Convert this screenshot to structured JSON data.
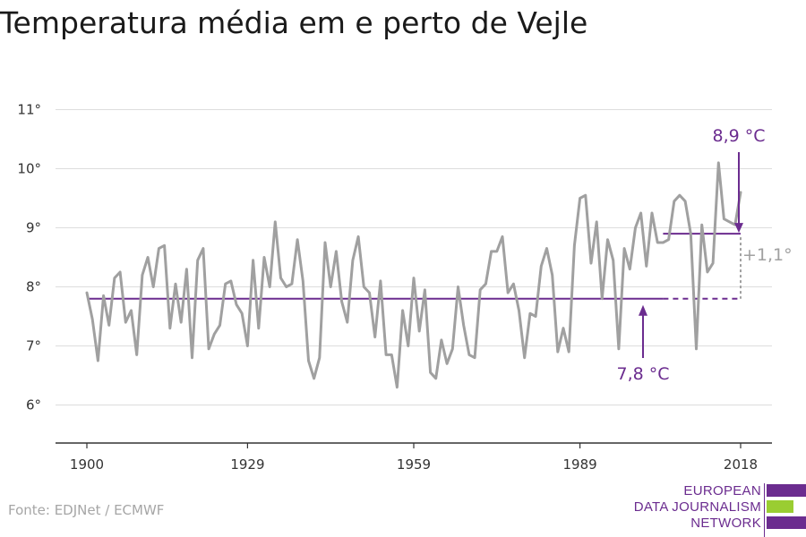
{
  "title": "Temperatura média em e perto de Vejle",
  "source": "Fonte: EDJNet / ECMWF",
  "logo": {
    "line1": "EUROPEAN",
    "line2": "DATA JOURNALISM",
    "line3": "NETWORK",
    "colors": {
      "purple": "#6b2c8f",
      "green": "#9acd32"
    }
  },
  "colors": {
    "series": "#a0a0a0",
    "accent": "#6b2c8f",
    "grid": "#dddddd",
    "axis": "#333333",
    "diff_label": "#a0a0a0"
  },
  "chart_data": {
    "type": "line",
    "title": "Temperatura média em e perto de Vejle",
    "xlabel": "",
    "ylabel": "",
    "xlim": [
      1900,
      2018
    ],
    "ylim": [
      5.3,
      11
    ],
    "x_ticks": [
      1900,
      1929,
      1959,
      1989,
      2018
    ],
    "x_tick_labels": [
      "1900",
      "1929",
      "1959",
      "1989",
      "2018"
    ],
    "y_ticks": [
      6,
      7,
      8,
      9,
      10,
      11
    ],
    "y_tick_labels": [
      "6°",
      "7°",
      "8°",
      "9°",
      "10°",
      "11°"
    ],
    "grid": true,
    "series": [
      {
        "x": [
          1900,
          1901,
          1902,
          1903,
          1904,
          1905,
          1906,
          1907,
          1908,
          1909,
          1910,
          1911,
          1912,
          1913,
          1914,
          1915,
          1916,
          1917,
          1918,
          1919,
          1920,
          1921,
          1922,
          1923,
          1924,
          1925,
          1926,
          1927,
          1928,
          1929,
          1930,
          1931,
          1932,
          1933,
          1934,
          1935,
          1936,
          1937,
          1938,
          1939,
          1940,
          1941,
          1942,
          1943,
          1944,
          1945,
          1946,
          1947,
          1948,
          1949,
          1950,
          1951,
          1952,
          1953,
          1954,
          1955,
          1956,
          1957,
          1958,
          1959,
          1960,
          1961,
          1962,
          1963,
          1964,
          1965,
          1966,
          1967,
          1968,
          1969,
          1970,
          1971,
          1972,
          1973,
          1974,
          1975,
          1976,
          1977,
          1978,
          1979,
          1980,
          1981,
          1982,
          1983,
          1984,
          1985,
          1986,
          1987,
          1988,
          1989,
          1990,
          1991,
          1992,
          1993,
          1994,
          1995,
          1996,
          1997,
          1998,
          1999,
          2000,
          2001,
          2002,
          2003,
          2004,
          2005,
          2006,
          2007,
          2008,
          2009,
          2010,
          2011,
          2012,
          2013,
          2014,
          2015,
          2016,
          2017,
          2018
        ],
        "values": [
          7.9,
          7.45,
          6.75,
          7.85,
          7.35,
          8.15,
          8.25,
          7.4,
          7.6,
          6.85,
          8.2,
          8.5,
          8.0,
          8.65,
          8.7,
          7.3,
          8.05,
          7.4,
          8.3,
          6.8,
          8.45,
          8.65,
          6.95,
          7.2,
          7.35,
          8.05,
          8.1,
          7.7,
          7.55,
          7.0,
          8.45,
          7.3,
          8.5,
          8.0,
          9.1,
          8.15,
          8.0,
          8.05,
          8.8,
          8.1,
          6.75,
          6.45,
          6.8,
          8.75,
          8.0,
          8.6,
          7.75,
          7.4,
          8.45,
          8.85,
          8.0,
          7.9,
          7.15,
          8.1,
          6.85,
          6.85,
          6.3,
          7.6,
          7.0,
          8.15,
          7.25,
          7.95,
          6.55,
          6.45,
          7.1,
          6.7,
          6.95,
          8.0,
          7.35,
          6.85,
          6.8,
          7.95,
          8.05,
          8.6,
          8.6,
          8.85,
          7.9,
          8.05,
          7.6,
          6.8,
          7.55,
          7.5,
          8.35,
          8.65,
          8.2,
          6.9,
          7.3,
          6.9,
          8.7,
          9.5,
          9.55,
          8.4,
          9.1,
          7.8,
          8.8,
          8.45,
          6.95,
          8.65,
          8.3,
          9.0,
          9.25,
          8.35,
          9.25,
          8.75,
          8.75,
          8.8,
          9.45,
          9.55,
          9.45,
          8.9,
          6.95,
          9.05,
          8.25,
          8.4,
          10.1,
          9.15,
          9.1,
          9.05,
          9.6
        ]
      }
    ],
    "annotations": {
      "baseline": {
        "value": 7.8,
        "label": "7,8 °C",
        "solid_from": 1900,
        "solid_to": 2004,
        "dashed_to": 2018
      },
      "recent": {
        "value": 8.9,
        "label": "8,9 °C",
        "from": 2004,
        "to": 2018
      },
      "difference": {
        "label": "+1,1°"
      }
    }
  }
}
